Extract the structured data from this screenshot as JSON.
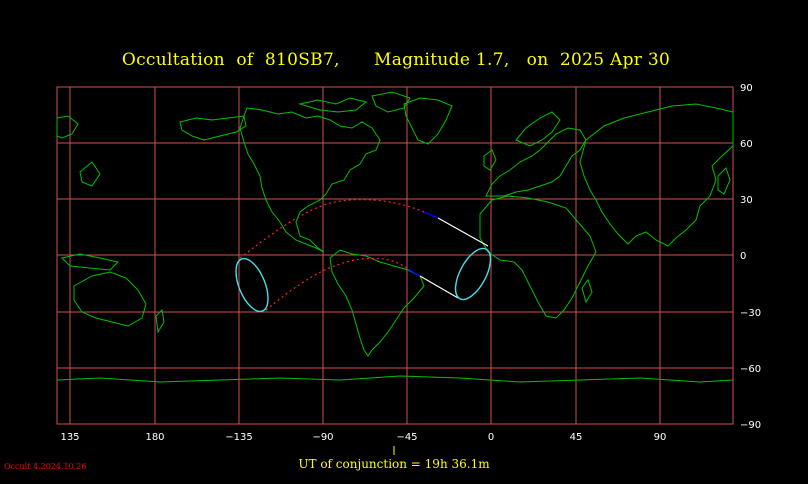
{
  "title": "Occultation  of  810SB7,      Magnitude 1.7,   on  2025 Apr 30",
  "ut_label": "UT of conjunction = 19h 36.1m",
  "version": "Occult 4.2024.10.26",
  "chart_data": {
    "type": "map",
    "projection": "equirectangular",
    "x_ticks": [
      "135",
      "180",
      "−135",
      "−90",
      "−45",
      "0",
      "45",
      "90"
    ],
    "y_ticks": [
      "90",
      "60",
      "30",
      "0",
      "−30",
      "−60",
      "−90"
    ],
    "grid": true,
    "conjunction_time_ut": "19h 36.1m",
    "colors": {
      "background": "#000000",
      "grid": "#d05050",
      "coastline": "#00c000",
      "path_limits": "#ff2020",
      "path_daylight": "#ffffff",
      "path_twilight": "#0000ff",
      "shadow_outline": "#40e0f0",
      "title": "#ffff00"
    }
  }
}
